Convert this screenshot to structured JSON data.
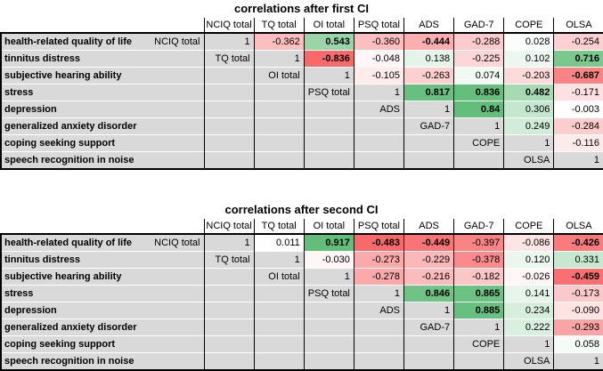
{
  "colors": {
    "scale_negative": "#f8696b",
    "scale_neutral": "#ffffff",
    "scale_positive": "#63be7b",
    "label_background": "#d9d9d9",
    "border": "#000000",
    "gridline": "#ffffff",
    "text": "#000000"
  },
  "chart_data": [
    {
      "type": "heatmap",
      "title": "correlations after first CI",
      "columns": [
        "NCIQ total",
        "TQ total",
        "OI total",
        "PSQ total",
        "ADS",
        "GAD-7",
        "COPE",
        "OLSA"
      ],
      "diagonal_value": "1",
      "value_range": [
        -1,
        1
      ],
      "rows": [
        {
          "label": "health-related quality of life",
          "scale": "NCIQ total",
          "values": [
            {
              "v": "-0.362",
              "bold": false
            },
            {
              "v": "0.543",
              "bold": true
            },
            {
              "v": "-0.360",
              "bold": false
            },
            {
              "v": "-0.444",
              "bold": true
            },
            {
              "v": "-0.288",
              "bold": false
            },
            {
              "v": "0.028",
              "bold": false
            },
            {
              "v": "-0.254",
              "bold": false
            }
          ]
        },
        {
          "label": "tinnitus distress",
          "scale": "TQ total",
          "values": [
            {
              "v": "-0.836",
              "bold": true
            },
            {
              "v": "-0.048",
              "bold": false
            },
            {
              "v": "0.138",
              "bold": false
            },
            {
              "v": "-0.225",
              "bold": false
            },
            {
              "v": "0.102",
              "bold": false
            },
            {
              "v": "0.716",
              "bold": true
            }
          ]
        },
        {
          "label": "subjective hearing ability",
          "scale": "OI total",
          "values": [
            {
              "v": "-0.105",
              "bold": false
            },
            {
              "v": "-0.263",
              "bold": false
            },
            {
              "v": "0.074",
              "bold": false
            },
            {
              "v": "-0.203",
              "bold": false
            },
            {
              "v": "-0.687",
              "bold": true
            }
          ]
        },
        {
          "label": "stress",
          "scale": "PSQ total",
          "values": [
            {
              "v": "0.817",
              "bold": true
            },
            {
              "v": "0.836",
              "bold": true
            },
            {
              "v": "0.482",
              "bold": true
            },
            {
              "v": "-0.171",
              "bold": false
            }
          ]
        },
        {
          "label": "depression",
          "scale": "ADS",
          "values": [
            {
              "v": "0.84",
              "bold": true
            },
            {
              "v": "0.306",
              "bold": false
            },
            {
              "v": "-0.003",
              "bold": false
            }
          ]
        },
        {
          "label": "generalized anxiety disorder",
          "scale": "GAD-7",
          "values": [
            {
              "v": "0.249",
              "bold": false
            },
            {
              "v": "-0.284",
              "bold": false
            }
          ]
        },
        {
          "label": "coping seeking support",
          "scale": "COPE",
          "values": [
            {
              "v": "-0.116",
              "bold": false
            }
          ]
        },
        {
          "label": "speech recognition in noise",
          "scale": "OLSA",
          "values": []
        }
      ]
    },
    {
      "type": "heatmap",
      "title": "correlations after second CI",
      "columns": [
        "NCIQ total",
        "TQ total",
        "OI total",
        "PSQ total",
        "ADS",
        "GAD-7",
        "COPE",
        "OLSA"
      ],
      "diagonal_value": "1",
      "value_range": [
        -1,
        1
      ],
      "rows": [
        {
          "label": "health-related quality of life",
          "scale": "NCIQ total",
          "values": [
            {
              "v": "0.011",
              "bold": false
            },
            {
              "v": "0.917",
              "bold": true
            },
            {
              "v": "-0.483",
              "bold": true
            },
            {
              "v": "-0.449",
              "bold": true
            },
            {
              "v": "-0.397",
              "bold": false
            },
            {
              "v": "-0.086",
              "bold": false
            },
            {
              "v": "-0.426",
              "bold": true
            }
          ]
        },
        {
          "label": "tinnitus distress",
          "scale": "TQ total",
          "values": [
            {
              "v": "-0.030",
              "bold": false
            },
            {
              "v": "-0.273",
              "bold": false
            },
            {
              "v": "-0.229",
              "bold": false
            },
            {
              "v": "-0.378",
              "bold": false
            },
            {
              "v": "0.120",
              "bold": false
            },
            {
              "v": "0.331",
              "bold": false
            }
          ]
        },
        {
          "label": "subjective hearing ability",
          "scale": "OI total",
          "values": [
            {
              "v": "-0.278",
              "bold": false
            },
            {
              "v": "-0.216",
              "bold": false
            },
            {
              "v": "-0.182",
              "bold": false
            },
            {
              "v": "-0.026",
              "bold": false
            },
            {
              "v": "-0.459",
              "bold": true
            }
          ]
        },
        {
          "label": "stress",
          "scale": "PSQ total",
          "values": [
            {
              "v": "0.846",
              "bold": true
            },
            {
              "v": "0.865",
              "bold": true
            },
            {
              "v": "0.141",
              "bold": false
            },
            {
              "v": "-0.173",
              "bold": false
            }
          ]
        },
        {
          "label": "depression",
          "scale": "ADS",
          "values": [
            {
              "v": "0.885",
              "bold": true
            },
            {
              "v": "0.234",
              "bold": false
            },
            {
              "v": "-0.090",
              "bold": false
            }
          ]
        },
        {
          "label": "generalized anxiety disorder",
          "scale": "GAD-7",
          "values": [
            {
              "v": "0.222",
              "bold": false
            },
            {
              "v": "-0.293",
              "bold": false
            }
          ]
        },
        {
          "label": "coping seeking support",
          "scale": "COPE",
          "values": [
            {
              "v": "0.058",
              "bold": false
            }
          ]
        },
        {
          "label": "speech recognition in noise",
          "scale": "OLSA",
          "values": []
        }
      ]
    }
  ]
}
